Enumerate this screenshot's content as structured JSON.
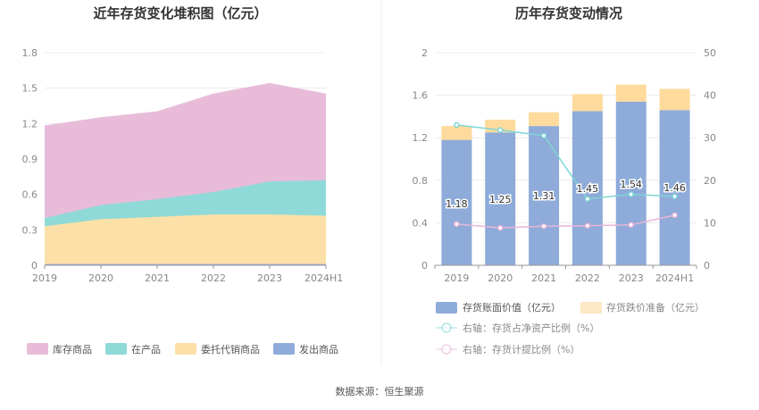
{
  "source": "数据来源：恒生聚源",
  "colors": {
    "stock": "#e8bcd9",
    "wip": "#8fdad8",
    "consign": "#fde0a8",
    "shipped": "#8eabd9",
    "book_value": "#8eabd9",
    "impairment": "#fedb9c",
    "ratio_net_assets": "#7fd6d6",
    "ratio_provision": "#e9b5d8"
  },
  "chart_data": [
    {
      "type": "area",
      "stacked": true,
      "title": "近年存货变化堆积图（亿元）",
      "categories": [
        "2019",
        "2020",
        "2021",
        "2022",
        "2023",
        "2024H1"
      ],
      "ylim": [
        0,
        1.8
      ],
      "yticks": [
        "0",
        "0.3",
        "0.6",
        "0.9",
        "1.2",
        "1.5",
        "1.8"
      ],
      "grid": true,
      "legend_position": "bottom",
      "series": [
        {
          "name": "库存商品",
          "values": [
            0.78,
            0.74,
            0.74,
            0.83,
            0.83,
            0.73
          ]
        },
        {
          "name": "在产品",
          "values": [
            0.07,
            0.12,
            0.15,
            0.19,
            0.28,
            0.3
          ]
        },
        {
          "name": "委托代销商品",
          "values": [
            0.32,
            0.38,
            0.4,
            0.42,
            0.42,
            0.41
          ]
        },
        {
          "name": "发出商品",
          "values": [
            0.01,
            0.01,
            0.01,
            0.01,
            0.01,
            0.01
          ]
        }
      ]
    },
    {
      "type": "bar",
      "stacked": true,
      "title": "历年存货变动情况",
      "categories": [
        "2019",
        "2020",
        "2021",
        "2022",
        "2023",
        "2024H1"
      ],
      "ylim": [
        0,
        2
      ],
      "yticks": [
        "0",
        "0.4",
        "0.8",
        "1.2",
        "1.6",
        "2"
      ],
      "y2lim": [
        0,
        50
      ],
      "y2ticks": [
        "0",
        "10",
        "20",
        "30",
        "40",
        "50"
      ],
      "grid": true,
      "legend_position": "bottom",
      "series": [
        {
          "name": "存货账面价值（亿元）",
          "values": [
            1.18,
            1.25,
            1.31,
            1.45,
            1.54,
            1.46
          ],
          "labels": [
            "1.18",
            "1.25",
            "1.31",
            "1.45",
            "1.54",
            "1.46"
          ]
        },
        {
          "name": "存货跌价准备（亿元）",
          "values": [
            0.13,
            0.12,
            0.13,
            0.16,
            0.16,
            0.2
          ]
        }
      ],
      "line_series": [
        {
          "name": "右轴：存货占净资产比例（%）",
          "values": [
            33.0,
            31.8,
            30.5,
            15.6,
            16.7,
            16.2
          ]
        },
        {
          "name": "右轴：存货计提比例（%）",
          "values": [
            9.7,
            8.8,
            9.2,
            9.3,
            9.5,
            11.8
          ]
        }
      ]
    }
  ]
}
